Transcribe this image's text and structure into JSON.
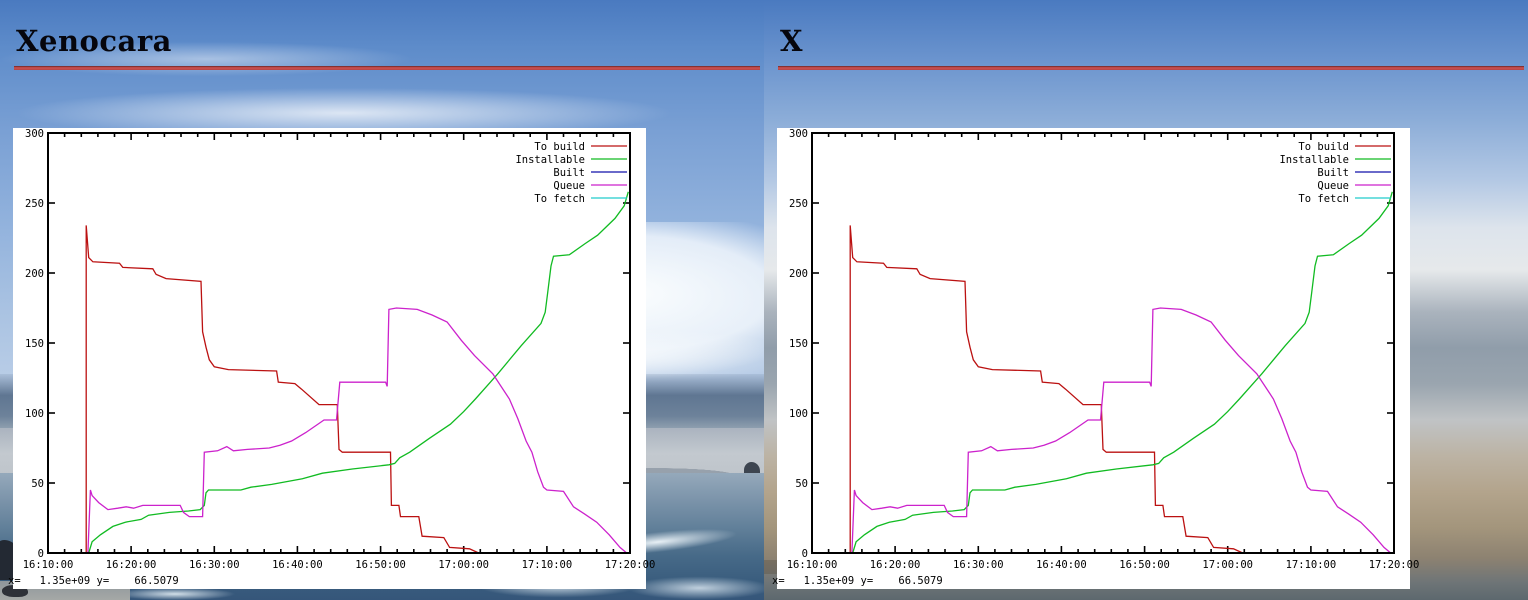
{
  "sections": [
    {
      "title": "Xenocara"
    },
    {
      "title": "X"
    }
  ],
  "rule_color": "#cd5151",
  "chart_data": {
    "type": "line",
    "title": "Xenocara",
    "x_axis": {
      "label": "",
      "unit": "time-of-day",
      "range_minutes_after_1600": [
        10,
        80
      ],
      "minor_tick_every_minutes": 2,
      "major_ticks": [
        {
          "minutes": 10,
          "label": "16:10:00"
        },
        {
          "minutes": 20,
          "label": "16:20:00"
        },
        {
          "minutes": 30,
          "label": "16:30:00"
        },
        {
          "minutes": 40,
          "label": "16:40:00"
        },
        {
          "minutes": 50,
          "label": "16:50:00"
        },
        {
          "minutes": 60,
          "label": "17:00:00"
        },
        {
          "minutes": 70,
          "label": "17:10:00"
        },
        {
          "minutes": 80,
          "label": "17:20:00"
        }
      ]
    },
    "y_axis": {
      "label": "",
      "range": [
        0,
        300
      ],
      "ticks": [
        0,
        50,
        100,
        150,
        200,
        250,
        300
      ]
    },
    "grid": false,
    "legend_position": "top-right-inside",
    "series": [
      {
        "name": "To build",
        "color": "#bb1111",
        "points": [
          [
            14.6,
            0
          ],
          [
            14.6,
            234
          ],
          [
            14.9,
            211
          ],
          [
            15.4,
            208
          ],
          [
            18.6,
            207
          ],
          [
            19.0,
            204
          ],
          [
            22.6,
            203
          ],
          [
            23.0,
            199
          ],
          [
            24.2,
            196
          ],
          [
            28.4,
            194
          ],
          [
            28.6,
            158
          ],
          [
            29.0,
            147
          ],
          [
            29.4,
            138
          ],
          [
            30.0,
            133
          ],
          [
            31.7,
            131
          ],
          [
            37.5,
            130
          ],
          [
            37.7,
            122
          ],
          [
            39.7,
            121
          ],
          [
            40.5,
            117
          ],
          [
            42.6,
            106
          ],
          [
            44.8,
            106
          ],
          [
            45.0,
            74
          ],
          [
            45.4,
            72
          ],
          [
            51.2,
            72
          ],
          [
            51.3,
            34
          ],
          [
            52.2,
            34
          ],
          [
            52.4,
            26
          ],
          [
            54.6,
            26
          ],
          [
            55.0,
            12
          ],
          [
            57.6,
            11
          ],
          [
            58.3,
            4
          ],
          [
            60.7,
            3
          ],
          [
            61.8,
            0
          ]
        ]
      },
      {
        "name": "Installable",
        "color": "#11bb22",
        "points": [
          [
            14.9,
            0
          ],
          [
            15.3,
            8
          ],
          [
            16.3,
            13
          ],
          [
            17.8,
            19
          ],
          [
            19.3,
            22
          ],
          [
            21.2,
            24
          ],
          [
            22.1,
            27
          ],
          [
            24.6,
            29
          ],
          [
            26.9,
            30
          ],
          [
            28.3,
            31
          ],
          [
            28.8,
            34
          ],
          [
            29.0,
            43
          ],
          [
            29.3,
            45
          ],
          [
            33.2,
            45
          ],
          [
            34.4,
            47
          ],
          [
            36.9,
            49
          ],
          [
            40.6,
            53
          ],
          [
            43.0,
            57
          ],
          [
            46.6,
            60
          ],
          [
            51.0,
            63
          ],
          [
            51.7,
            64
          ],
          [
            52.3,
            68
          ],
          [
            53.5,
            72
          ],
          [
            55.9,
            82
          ],
          [
            58.4,
            92
          ],
          [
            60.0,
            101
          ],
          [
            61.4,
            110
          ],
          [
            64.1,
            128
          ],
          [
            66.9,
            148
          ],
          [
            69.3,
            164
          ],
          [
            69.8,
            172
          ],
          [
            70.1,
            186
          ],
          [
            70.5,
            205
          ],
          [
            70.8,
            212
          ],
          [
            72.7,
            213
          ],
          [
            74.6,
            221
          ],
          [
            76.1,
            227
          ],
          [
            78.2,
            239
          ],
          [
            79.3,
            248
          ],
          [
            79.8,
            258
          ]
        ]
      },
      {
        "name": "Built",
        "color": "#1111aa",
        "points": []
      },
      {
        "name": "Queue",
        "color": "#cc22cc",
        "points": [
          [
            14.8,
            0
          ],
          [
            15.1,
            45
          ],
          [
            15.3,
            41
          ],
          [
            16.1,
            36
          ],
          [
            17.2,
            31
          ],
          [
            18.4,
            32
          ],
          [
            19.4,
            33
          ],
          [
            20.3,
            32
          ],
          [
            21.4,
            34
          ],
          [
            25.9,
            34
          ],
          [
            26.3,
            29
          ],
          [
            27.0,
            26
          ],
          [
            28.6,
            26
          ],
          [
            28.8,
            72
          ],
          [
            30.4,
            73
          ],
          [
            31.5,
            76
          ],
          [
            32.3,
            73
          ],
          [
            34.0,
            74
          ],
          [
            36.6,
            75
          ],
          [
            37.9,
            77
          ],
          [
            39.3,
            80
          ],
          [
            41.0,
            86
          ],
          [
            43.2,
            95
          ],
          [
            44.7,
            95
          ],
          [
            45.1,
            122
          ],
          [
            50.6,
            122
          ],
          [
            50.8,
            119
          ],
          [
            51.0,
            174
          ],
          [
            51.9,
            175
          ],
          [
            54.4,
            174
          ],
          [
            56.2,
            170
          ],
          [
            58.0,
            165
          ],
          [
            59.7,
            152
          ],
          [
            61.3,
            141
          ],
          [
            63.5,
            128
          ],
          [
            65.5,
            110
          ],
          [
            66.5,
            96
          ],
          [
            67.5,
            80
          ],
          [
            68.2,
            72
          ],
          [
            68.9,
            58
          ],
          [
            69.6,
            47
          ],
          [
            70.0,
            45
          ],
          [
            72.0,
            44
          ],
          [
            73.2,
            33
          ],
          [
            74.5,
            28
          ],
          [
            76.0,
            22
          ],
          [
            77.5,
            13
          ],
          [
            78.8,
            4
          ],
          [
            79.6,
            0
          ]
        ]
      },
      {
        "name": "To fetch",
        "color": "#22cccc",
        "points": []
      }
    ],
    "status_line": "x=   1.35e+09 y=    66.5079"
  }
}
